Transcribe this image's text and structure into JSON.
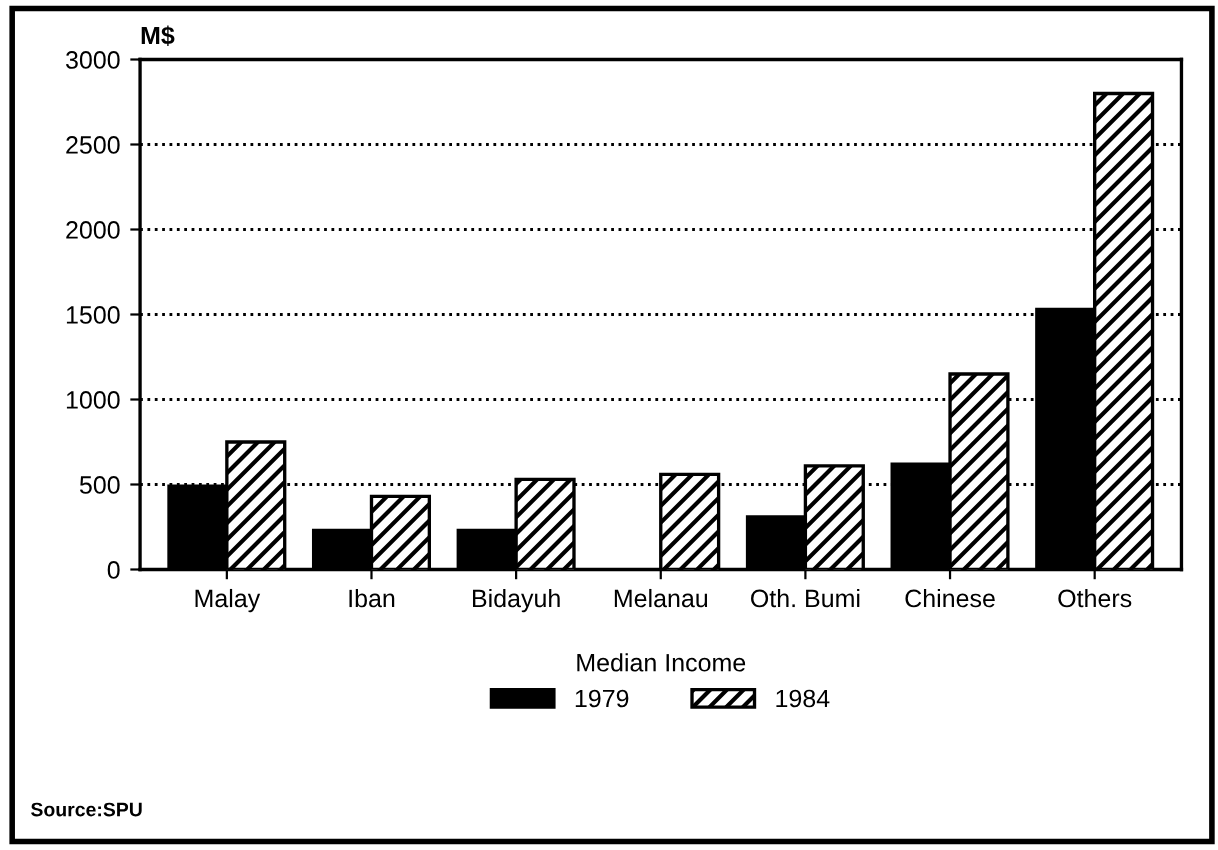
{
  "chart_data": {
    "type": "bar",
    "ylabel": "M$",
    "legend_title": "Median Income",
    "categories": [
      "Malay",
      "Iban",
      "Bidayuh",
      "Melanau",
      "Oth. Bumi",
      "Chinese",
      "Others"
    ],
    "series": [
      {
        "name": "1979",
        "color": "#000000",
        "values": [
          490,
          230,
          230,
          null,
          310,
          620,
          1530
        ]
      },
      {
        "name": "1984",
        "color": "#000000",
        "values": [
          750,
          430,
          530,
          560,
          610,
          1150,
          2800
        ]
      }
    ],
    "ylim": [
      0,
      3000
    ],
    "yticks": [
      0,
      500,
      1000,
      1500,
      2000,
      2500,
      3000
    ],
    "grid": "y",
    "legend": "bottom",
    "annotations": [
      "Source:SPU"
    ]
  }
}
